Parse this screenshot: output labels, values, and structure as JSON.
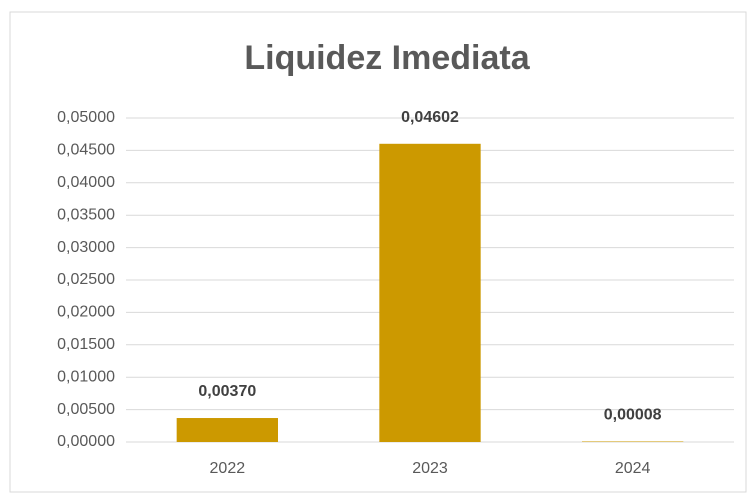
{
  "chart_data": {
    "type": "bar",
    "title": "Liquidez Imediata",
    "categories": [
      "2022",
      "2023",
      "2024"
    ],
    "values": [
      0.0037,
      0.04602,
      8e-05
    ],
    "value_labels": [
      "0,00370",
      "0,04602",
      "0,00008"
    ],
    "color": "#cc9900",
    "ylim": [
      0,
      0.05
    ],
    "yticks": [
      {
        "value": 0,
        "label": "0,00000"
      },
      {
        "value": 0.005,
        "label": "0,00500"
      },
      {
        "value": 0.01,
        "label": "0,01000"
      },
      {
        "value": 0.015,
        "label": "0,01500"
      },
      {
        "value": 0.02,
        "label": "0,02000"
      },
      {
        "value": 0.025,
        "label": "0,02500"
      },
      {
        "value": 0.03,
        "label": "0,03000"
      },
      {
        "value": 0.035,
        "label": "0,03500"
      },
      {
        "value": 0.04,
        "label": "0,04000"
      },
      {
        "value": 0.045,
        "label": "0,04500"
      },
      {
        "value": 0.05,
        "label": "0,05000"
      }
    ],
    "grid": true
  }
}
